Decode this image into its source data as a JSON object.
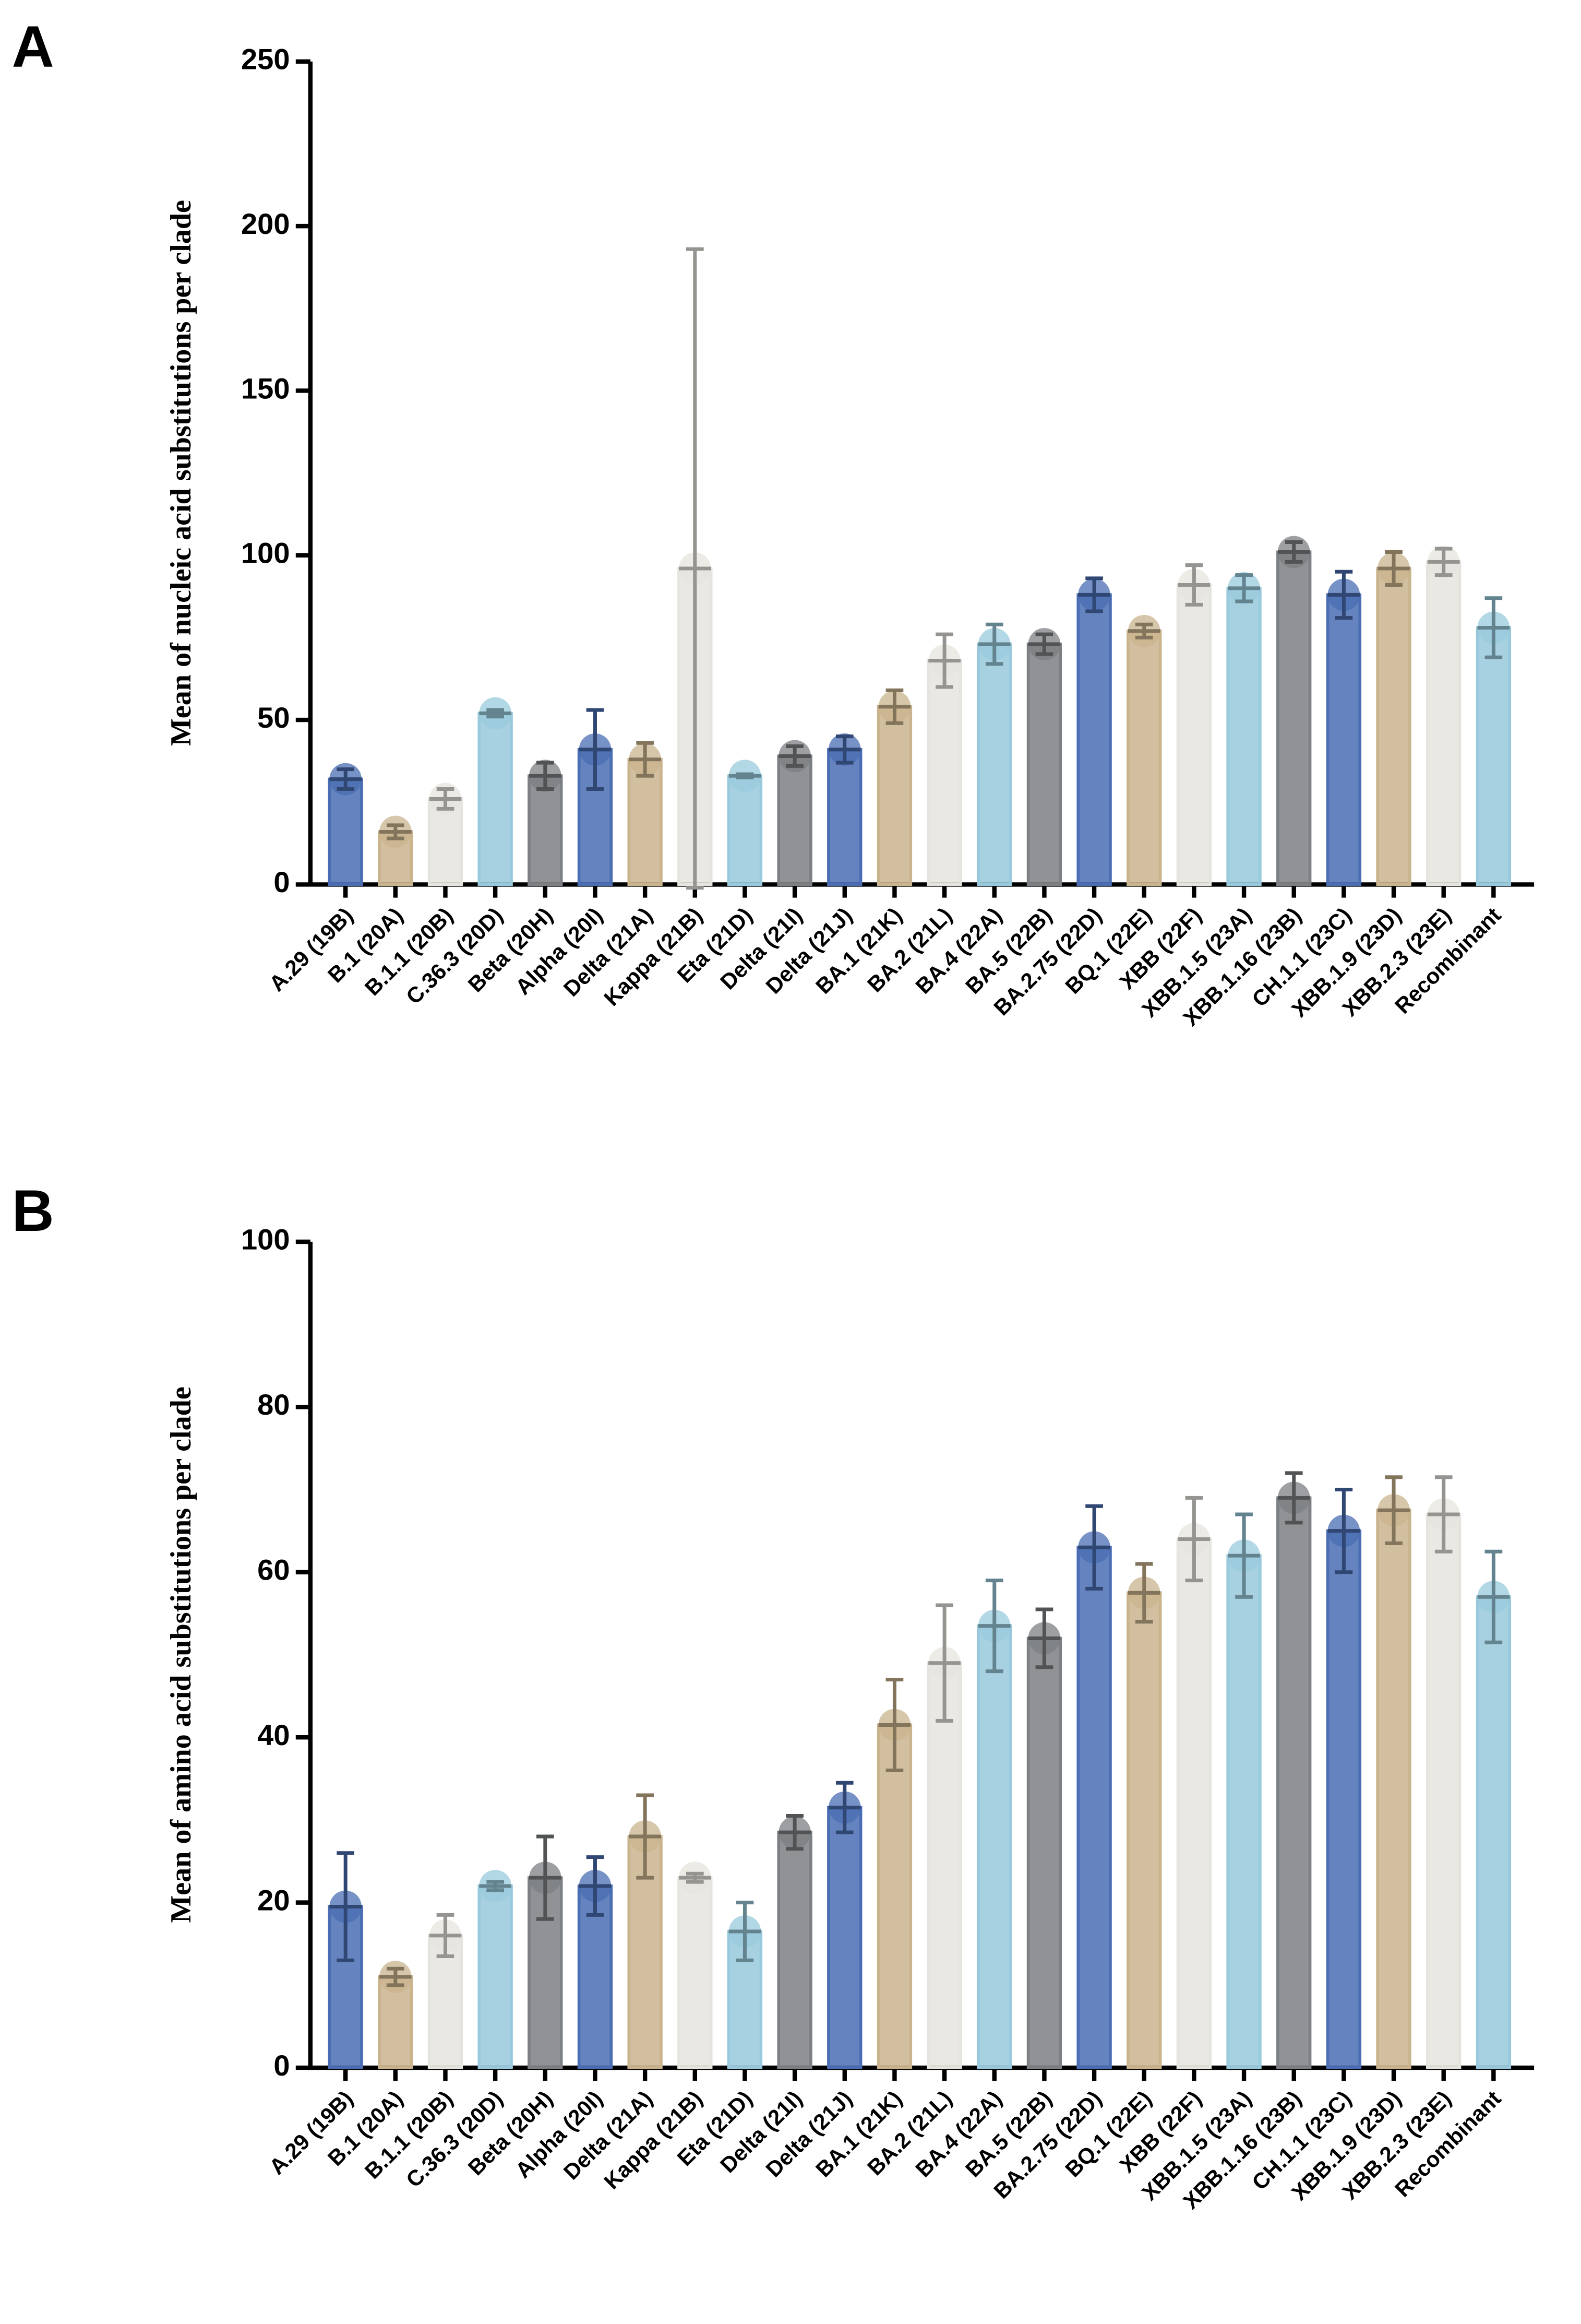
{
  "chart_data": [
    {
      "type": "bar",
      "label": "A",
      "y_label": "Mean of nucleic acid substitutions per clade",
      "categories": [
        "A.29 (19B)",
        "B.1 (20A)",
        "B.1.1 (20B)",
        "C.36.3 (20D)",
        "Beta (20H)",
        "Alpha (20I)",
        "Delta (21A)",
        "Kappa (21B)",
        "Eta (21D)",
        "Delta (21I)",
        "Delta (21J)",
        "BA.1 (21K)",
        "BA.2 (21L)",
        "BA.4 (22A)",
        "BA.5 (22B)",
        "BA.2.75 (22D)",
        "BQ.1 (22E)",
        "XBB (22F)",
        "XBB.1.5 (23A)",
        "XBB.1.16 (23B)",
        "CH.1.1 (23C)",
        "XBB.1.9 (23D)",
        "XBB.2.3 (23E)",
        "Recombinant"
      ],
      "values": [
        32,
        16,
        26,
        52,
        33,
        41,
        38,
        96,
        33,
        39,
        41,
        54,
        68,
        73,
        73,
        88,
        77,
        91,
        90,
        101,
        88,
        96,
        98,
        78
      ],
      "errors": [
        3,
        2,
        3,
        1,
        4,
        12,
        5,
        97,
        0.5,
        3,
        4,
        5,
        8,
        6,
        3,
        5,
        2,
        6,
        4,
        3,
        7,
        5,
        4,
        9
      ],
      "colors": [
        "#4a6db3",
        "#c9b48e",
        "#e6e4de",
        "#98c9dc",
        "#7c7f83",
        "#4a6db3",
        "#c9b48e",
        "#e6e4de",
        "#98c9dc",
        "#7c7f83",
        "#4a6db3",
        "#c9b48e",
        "#e6e4de",
        "#98c9dc",
        "#7c7f83",
        "#4a6db3",
        "#c9b48e",
        "#e6e4de",
        "#98c9dc",
        "#7c7f83",
        "#4a6db3",
        "#c9b48e",
        "#e6e4de",
        "#98c9dc"
      ],
      "ylim": [
        0,
        250
      ],
      "yticks": [
        0,
        50,
        100,
        150,
        200,
        250
      ]
    },
    {
      "type": "bar",
      "label": "B",
      "y_label": "Mean of amino acid substitutions per clade",
      "categories": [
        "A.29 (19B)",
        "B.1 (20A)",
        "B.1.1 (20B)",
        "C.36.3 (20D)",
        "Beta (20H)",
        "Alpha (20I)",
        "Delta (21A)",
        "Kappa (21B)",
        "Eta (21D)",
        "Delta (21I)",
        "Delta (21J)",
        "BA.1 (21K)",
        "BA.2 (21L)",
        "BA.4 (22A)",
        "BA.5 (22B)",
        "BA.2.75 (22D)",
        "BQ.1 (22E)",
        "XBB (22F)",
        "XBB.1.5 (23A)",
        "XBB.1.16 (23B)",
        "CH.1.1 (23C)",
        "XBB.1.9 (23D)",
        "XBB.2.3 (23E)",
        "Recombinant"
      ],
      "values": [
        19.5,
        11,
        16,
        22,
        23,
        22,
        28,
        23,
        16.5,
        28.5,
        31.5,
        41.5,
        49,
        53.5,
        52,
        63,
        57.5,
        64,
        62,
        69,
        65,
        67.5,
        67,
        57
      ],
      "errors": [
        6.5,
        1,
        2.5,
        0.5,
        5,
        3.5,
        5,
        0.5,
        3.5,
        2,
        3,
        5.5,
        7,
        5.5,
        3.5,
        5,
        3.5,
        5,
        5,
        3,
        5,
        4,
        4.5,
        5.5
      ],
      "colors": [
        "#4a6db3",
        "#c9b48e",
        "#e6e4de",
        "#98c9dc",
        "#7c7f83",
        "#4a6db3",
        "#c9b48e",
        "#e6e4de",
        "#98c9dc",
        "#7c7f83",
        "#4a6db3",
        "#c9b48e",
        "#e6e4de",
        "#98c9dc",
        "#7c7f83",
        "#4a6db3",
        "#c9b48e",
        "#e6e4de",
        "#98c9dc",
        "#7c7f83",
        "#4a6db3",
        "#c9b48e",
        "#e6e4de",
        "#98c9dc"
      ],
      "ylim": [
        0,
        100
      ],
      "yticks": [
        0,
        20,
        40,
        60,
        80,
        100
      ]
    }
  ]
}
